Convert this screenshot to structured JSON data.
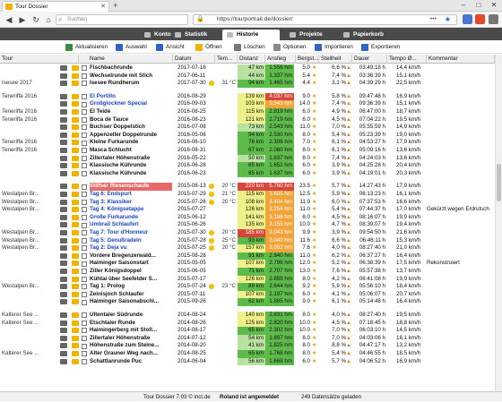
{
  "browser": {
    "tab_title": "Tour Dossier",
    "search_placeholder": "Suchen",
    "url": "https://tourportrait.de/dossier/"
  },
  "app_tabs": [
    "Konto",
    "Statistik",
    "Historie",
    "Projekte",
    "Papierkorb"
  ],
  "toolbar": [
    "Aktualisieren",
    "Auswahl",
    "Ansicht",
    "Öffnen",
    "Löschen",
    "Optionen",
    "Importieren",
    "Exportieren"
  ],
  "columns": [
    "Tour",
    "Name",
    "Datum",
    "Tem...",
    "Distanz",
    "Anstieg",
    "Bergst...",
    "Steilheit",
    "Dauer",
    "Tempo Ø...",
    "Kommentar"
  ],
  "colors": {
    "green": "#5dbb4a",
    "light_green": "#b9e2a0",
    "yellow": "#f0f08a",
    "orange": "#f2a33a",
    "red": "#d9453a",
    "highlight_row": "#e66a6a"
  },
  "rows": [
    {
      "group": "",
      "name": "Fischbachrunde",
      "date": "2017-07-16",
      "temp": "",
      "dist": "47 km",
      "asc": "1.556 hm",
      "bm": "5.0",
      "st": "6,6 %",
      "dur": "03:49:18 h",
      "spd": "14,4 km/h",
      "kom": "",
      "dc": "light_green",
      "ac": "green"
    },
    {
      "group": "",
      "name": "Wechselrunde mit Stich",
      "date": "2017-06-11",
      "temp": "",
      "dist": "44 km",
      "asc": "1.337 hm",
      "bm": "5.4",
      "st": "7,4 %",
      "dur": "03:36:39 h",
      "spd": "15,1 km/h",
      "kom": "",
      "dc": "light_green",
      "ac": "green"
    },
    {
      "group": "Isesee 2017",
      "name": "Isesee Rundherum",
      "date": "2017-07-30",
      "temp": "31 °C",
      "dist": "94 km",
      "asc": "1.465 hm",
      "bm": "4.4",
      "st": "3,1 %",
      "dur": "04:39:29 h",
      "spd": "22,5 km/h",
      "kom": "",
      "dc": "green",
      "ac": "green"
    },
    {
      "gap": true
    },
    {
      "group": "Teneriffa 2016",
      "name": "El Portillo",
      "date": "2016-08-29",
      "temp": "",
      "dist": "139 km",
      "asc": "4.037 hm",
      "bm": "9.0",
      "st": "5,8 %",
      "dur": "09:47:48 h",
      "spd": "16,9 km/h",
      "kom": "",
      "dc": "yellow",
      "ac": "red",
      "blue": true
    },
    {
      "group": "",
      "name": "Großglockner Special",
      "date": "2016-09-03",
      "temp": "",
      "dist": "103 km",
      "asc": "3.543 hm",
      "bm": "14.0",
      "st": "7,4 %",
      "dur": "09:36:39 h",
      "spd": "15,1 km/h",
      "kom": "",
      "dc": "yellow",
      "ac": "orange",
      "blue": true
    },
    {
      "group": "Teneriffa 2016",
      "name": "El Teide",
      "date": "2016-08-25",
      "temp": "",
      "dist": "115 km",
      "asc": "2.819 hm",
      "bm": "6.0",
      "st": "4,9 %",
      "dur": "06:47:00 h",
      "spd": "18,7 km/h",
      "kom": "",
      "dc": "yellow",
      "ac": "green"
    },
    {
      "group": "Teneriffa 2016",
      "name": "Boca de Tauce",
      "date": "2016-08-23",
      "temp": "",
      "dist": "121 km",
      "asc": "2.719 hm",
      "bm": "6.0",
      "st": "4,5 %",
      "dur": "07:04:22 h",
      "spd": "19,5 km/h",
      "kom": "",
      "dc": "yellow",
      "ac": "green"
    },
    {
      "group": "",
      "name": "Buchser Doppelstich",
      "date": "2016-07-08",
      "temp": "",
      "dist": "73 km",
      "asc": "2.543 hm",
      "bm": "11.0",
      "st": "7,0 %",
      "dur": "05:55:59 h",
      "spd": "14,9 km/h",
      "kom": "",
      "dc": "light_green",
      "ac": "green"
    },
    {
      "group": "",
      "name": "Appenzeller Doppelrunde",
      "date": "2016-05-06",
      "temp": "",
      "dist": "94 km",
      "asc": "2.530 hm",
      "bm": "8.0",
      "st": "5,4 %",
      "dur": "05:23:39 h",
      "spd": "19,0 km/h",
      "kom": "",
      "dc": "green",
      "ac": "green"
    },
    {
      "group": "Teneriffa 2016",
      "name": "Kleine Furkarunde",
      "date": "2016-06-10",
      "temp": "",
      "dist": "76 km",
      "asc": "2.306 hm",
      "bm": "7.0",
      "st": "6,1 %",
      "dur": "04:53:27 h",
      "spd": "17,9 km/h",
      "kom": "",
      "dc": "green",
      "ac": "green"
    },
    {
      "group": "Teneriffa 2016",
      "name": "Masca Schlucht",
      "date": "2016-08-31",
      "temp": "",
      "dist": "67 km",
      "asc": "2.060 hm",
      "bm": "8.0",
      "st": "6,1 %",
      "dur": "05:09:16 h",
      "spd": "13,6 km/h",
      "kom": "",
      "dc": "green",
      "ac": "green"
    },
    {
      "group": "",
      "name": "Zillertaler Höhenstraße",
      "date": "2016-05-22",
      "temp": "",
      "dist": "50 km",
      "asc": "1.837 hm",
      "bm": "8.0",
      "st": "7,4 %",
      "dur": "04:24:03 h",
      "spd": "13,6 km/h",
      "kom": "",
      "dc": "light_green",
      "ac": "green"
    },
    {
      "group": "",
      "name": "Klassische Kührunde",
      "date": "2016-06-28",
      "temp": "",
      "dist": "85 km",
      "asc": "1.652 hm",
      "bm": "6.0",
      "st": "3,9 %",
      "dur": "04:25:28 h",
      "spd": "20,4 km/h",
      "kom": "",
      "dc": "green",
      "ac": "green"
    },
    {
      "group": "",
      "name": "Klassische Kührunde",
      "date": "2016-06-23",
      "temp": "",
      "dist": "85 km",
      "asc": "1.637 hm",
      "bm": "6.0",
      "st": "3,9 %",
      "dur": "04:19:01 h",
      "spd": "20,3 km/h",
      "kom": "",
      "dc": "green",
      "ac": "green"
    },
    {
      "gap": true
    },
    {
      "group": "",
      "name": "Stilfser Riesenschaufe",
      "date": "2015-08-13",
      "temp": "20 °C",
      "dist": "220 km",
      "asc": "5.760 hm",
      "bm": "23.5",
      "st": "5,7 %",
      "dur": "14:27:43 h",
      "spd": "17,9 km/h",
      "kom": "",
      "dc": "red",
      "ac": "red",
      "hl": true
    },
    {
      "group": "Westalpen Br...",
      "name": "Tag 6: Endspurt",
      "date": "2015-07-29",
      "temp": "21 °C",
      "dist": "115 km",
      "asc": "3.605 hm",
      "bm": "12.5",
      "st": "5,9 %",
      "dur": "06:13:23 h",
      "spd": "16,1 km/h",
      "kom": "",
      "dc": "yellow",
      "ac": "orange",
      "blue": true
    },
    {
      "group": "Westalpen Br...",
      "name": "Tag 3: Klassiker",
      "date": "2015-07-26",
      "temp": "20 °C",
      "dist": "108 km",
      "asc": "3.404 hm",
      "bm": "11.9",
      "st": "6,0 %",
      "dur": "07:37:53 h",
      "spd": "16,6 km/h",
      "kom": "",
      "dc": "yellow",
      "ac": "orange",
      "blue": true
    },
    {
      "group": "Westalpen Br...",
      "name": "Tag 4: Königsetappe",
      "date": "2015-07-27",
      "temp": "",
      "dist": "126 km",
      "asc": "3.254 hm",
      "bm": "11.0",
      "st": "5,4 %",
      "dur": "07:44:37 h",
      "spd": "17,0 km/h",
      "kom": "Gekürzt wegen Erdrutsch",
      "dc": "yellow",
      "ac": "orange",
      "blue": true
    },
    {
      "group": "",
      "name": "Große Furkarunde",
      "date": "2015-06-12",
      "temp": "",
      "dist": "141 km",
      "asc": "3.186 hm",
      "bm": "8.0",
      "st": "4,5 %",
      "dur": "08:16:07 h",
      "spd": "19,9 km/h",
      "kom": "",
      "dc": "yellow",
      "ac": "orange",
      "blue": true
    },
    {
      "group": "",
      "name": "Umbrail Schlauferl",
      "date": "2015-06-26",
      "temp": "",
      "dist": "135 km",
      "asc": "3.155 hm",
      "bm": "10.0",
      "st": "4,7 %",
      "dur": "08:39:07 h",
      "spd": "19,4 km/h",
      "kom": "",
      "dc": "yellow",
      "ac": "orange",
      "blue": true
    },
    {
      "group": "Westalpen Br...",
      "name": "Tag 7: Tour d'Honneur",
      "date": "2015-07-30",
      "temp": "20 °C",
      "dist": "185 km",
      "asc": "3.043 hm",
      "bm": "9.9",
      "st": "3,9 %",
      "dur": "09:54:50 h",
      "spd": "21,6 km/h",
      "kom": "",
      "dc": "red",
      "ac": "orange",
      "blue": true
    },
    {
      "group": "Westalpen Br...",
      "name": "Tag 5: Genußradeln",
      "date": "2015-07-28",
      "temp": "25 °C",
      "dist": "93 km",
      "asc": "3.040 hm",
      "bm": "11.6",
      "st": "6,6 %",
      "dur": "06:46:11 h",
      "spd": "15,3 km/h",
      "kom": "",
      "dc": "green",
      "ac": "orange",
      "blue": true
    },
    {
      "group": "Westalpen Br...",
      "name": "Tag 2: Deja vu",
      "date": "2015-07-25",
      "temp": "20 °C",
      "dist": "157 km",
      "asc": "3.002 hm",
      "bm": "7.6",
      "st": "4,0 %",
      "dur": "08:27:40 h",
      "spd": "21,0 km/h",
      "kom": "",
      "dc": "yellow",
      "ac": "orange",
      "blue": true
    },
    {
      "group": "",
      "name": "Vordere Bregenzerwald...",
      "date": "2015-08-28",
      "temp": "",
      "dist": "91 km",
      "asc": "2.840 hm",
      "bm": "11.0",
      "st": "6,2 %",
      "dur": "06:37:27 h",
      "spd": "16,4 km/h",
      "kom": "",
      "dc": "green",
      "ac": "green"
    },
    {
      "group": "",
      "name": "Haiminger Saisonstart",
      "date": "2015-05-05",
      "temp": "",
      "dist": "107 km",
      "asc": "2.796 hm",
      "bm": "12.0",
      "st": "5,2 %",
      "dur": "06:38:39 h",
      "spd": "17,5 km/h",
      "kom": "Rekonstruiert",
      "dc": "yellow",
      "ac": "green"
    },
    {
      "group": "",
      "name": "Ziller Königsdoppel",
      "date": "2015-06-05",
      "temp": "",
      "dist": "71 km",
      "asc": "2.707 hm",
      "bm": "13.0",
      "st": "7,6 %",
      "dur": "05:57:38 h",
      "spd": "13,7 km/h",
      "kom": "",
      "dc": "green",
      "ac": "green"
    },
    {
      "group": "",
      "name": "Kühtai über Seefelder S...",
      "date": "2015-07-17",
      "temp": "",
      "dist": "126 km",
      "asc": "2.659 hm",
      "bm": "8.0",
      "st": "4,2 %",
      "dur": "06:41:08 h",
      "spd": "19,9 km/h",
      "kom": "",
      "dc": "yellow",
      "ac": "green"
    },
    {
      "group": "Westalpen Br...",
      "name": "Tag 1: Prolog",
      "date": "2015-07-24",
      "temp": "23 °C",
      "dist": "89 km",
      "asc": "2.644 hm",
      "bm": "9.2",
      "st": "5,9 %",
      "dur": "05:56:10 h",
      "spd": "18,4 km/h",
      "kom": "",
      "dc": "green",
      "ac": "green"
    },
    {
      "group": "",
      "name": "Zeinisjoch Schlaufer",
      "date": "2015-07-11",
      "temp": "",
      "dist": "107 km",
      "asc": "2.197 hm",
      "bm": "6.0",
      "st": "4,1 %",
      "dur": "05:06:07 h",
      "spd": "20,7 km/h",
      "kom": "",
      "dc": "yellow",
      "ac": "green"
    },
    {
      "group": "",
      "name": "Haiminger Saisonabschl...",
      "date": "2015-09-26",
      "temp": "",
      "dist": "62 km",
      "asc": "1.885 hm",
      "bm": "9.0",
      "st": "6,1 %",
      "dur": "05:14:48 h",
      "spd": "16,4 km/h",
      "kom": "",
      "dc": "green",
      "ac": "green"
    },
    {
      "gap": true
    },
    {
      "group": "Kalterer See ...",
      "name": "Ultentaler Südrunde",
      "date": "2014-08-24",
      "temp": "",
      "dist": "140 km",
      "asc": "2.831 hm",
      "bm": "8.0",
      "st": "4,0 %",
      "dur": "08:27:40 h",
      "spd": "19,5 km/h",
      "kom": "",
      "dc": "yellow",
      "ac": "green"
    },
    {
      "group": "Kalterer See ...",
      "name": "Etschtaler Runde",
      "date": "2014-08-26",
      "temp": "",
      "dist": "125 km",
      "asc": "2.820 hm",
      "bm": "10.0",
      "st": "4,5 %",
      "dur": "07:18:45 h",
      "spd": "18,8 km/h",
      "kom": "",
      "dc": "yellow",
      "ac": "green"
    },
    {
      "group": "",
      "name": "Haimingerberg mit Stoll...",
      "date": "2014-08-17",
      "temp": "",
      "dist": "65 km",
      "asc": "2.302 hm",
      "bm": "10.0",
      "st": "7,0 %",
      "dur": "06:03:10 h",
      "spd": "14,5 km/h",
      "kom": "",
      "dc": "green",
      "ac": "green"
    },
    {
      "group": "",
      "name": "Zillertaler Höhenstraße",
      "date": "2014-07-12",
      "temp": "",
      "dist": "54 km",
      "asc": "1.897 hm",
      "bm": "8.0",
      "st": "7,0 %",
      "dur": "04:03:06 h",
      "spd": "16,1 km/h",
      "kom": "",
      "dc": "light_green",
      "ac": "green"
    },
    {
      "group": "",
      "name": "Höhenstraße zum Steine...",
      "date": "2014-08-20",
      "temp": "",
      "dist": "41 km",
      "asc": "1.825 hm",
      "bm": "8.0",
      "st": "8,8 %",
      "dur": "04:47:17 h",
      "spd": "13,2 km/h",
      "kom": "",
      "dc": "light_green",
      "ac": "green"
    },
    {
      "group": "Kalterer See ...",
      "name": "Alter Grauner Weg nach...",
      "date": "2014-08-25",
      "temp": "",
      "dist": "65 km",
      "asc": "1.768 hm",
      "bm": "8.0",
      "st": "5,4 %",
      "dur": "04:46:55 h",
      "spd": "18,5 km/h",
      "kom": "",
      "dc": "green",
      "ac": "green"
    },
    {
      "group": "",
      "name": "Schattlanrunde Puc",
      "date": "2014-06-04",
      "temp": "",
      "dist": "56 km",
      "asc": "1.668 hm",
      "bm": "6.0",
      "st": "5,7 %",
      "dur": "04:06:52 h",
      "spd": "16,9 km/h",
      "kom": "",
      "dc": "light_green",
      "ac": "green"
    }
  ],
  "status": {
    "left": "Tour Dossier 7.03 © inct.de",
    "middle": "Roland ist angemeldet",
    "right": "249 Datensätze geladen"
  }
}
